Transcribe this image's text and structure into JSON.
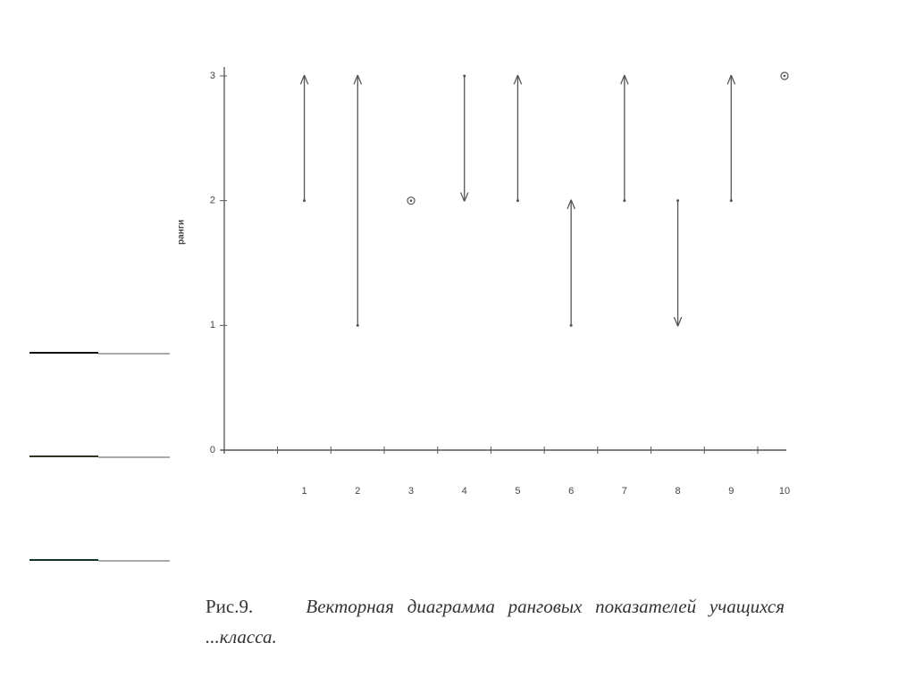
{
  "chart_data": {
    "type": "vector",
    "ylabel": "ранги",
    "x": [
      1,
      2,
      3,
      4,
      5,
      6,
      7,
      8,
      9,
      10
    ],
    "start": [
      2,
      1,
      2,
      3,
      2,
      1,
      2,
      2,
      2,
      3
    ],
    "end": [
      3,
      3,
      2,
      2,
      3,
      2,
      3,
      1,
      3,
      3
    ],
    "color": "#555555",
    "xlim": [
      -0.5,
      10
    ],
    "xticks": [
      1,
      2,
      3,
      4,
      5,
      6,
      7,
      8,
      9,
      10
    ],
    "ylim": [
      0,
      3
    ],
    "yticks": [
      0,
      1,
      2,
      3
    ]
  },
  "caption_label": "Рис.9.",
  "caption": "Векторная диаграмма ранговых показателей учащихся ...класса."
}
